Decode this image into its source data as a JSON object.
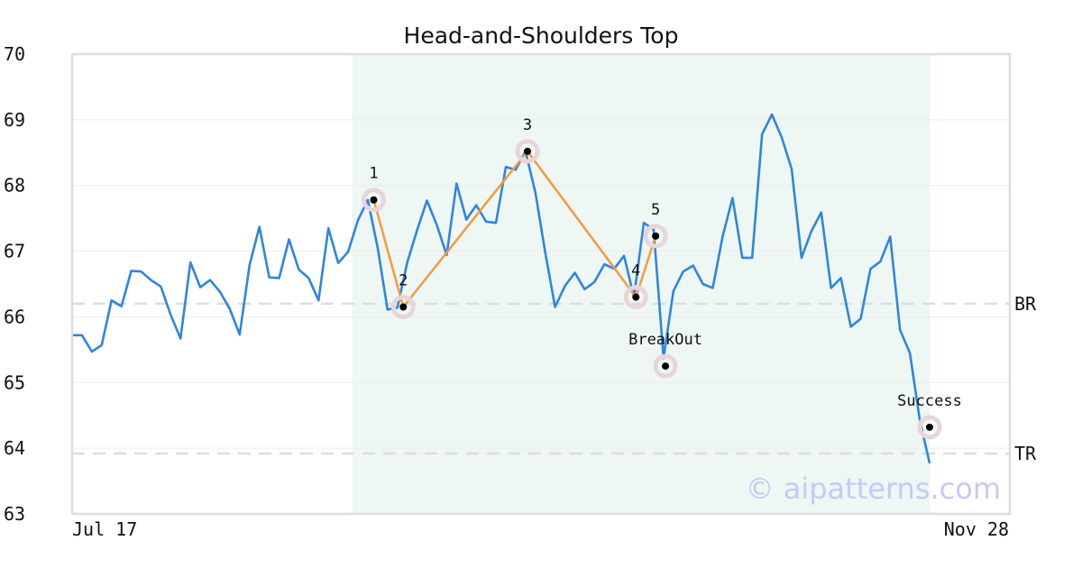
{
  "chart_data": {
    "type": "line",
    "title": "Head-and-Shoulders Top",
    "xlabel": "",
    "ylabel": "",
    "ylim": [
      63,
      70
    ],
    "yticks": [
      "63",
      "64",
      "65",
      "66",
      "67",
      "68",
      "69",
      "70"
    ],
    "x_range_labels": [
      "Jul 17",
      "Nov 28"
    ],
    "grid": "horizontal",
    "colors": {
      "price_line": "#2e86de",
      "pattern_line": "#f39c45",
      "pattern_band": "#eef7f3",
      "level_line": "#dddddd",
      "marker_halo": "#e8d5dc",
      "marker_dot": "#000000",
      "frame": "#dddddd",
      "grid": "#ebebeb"
    },
    "series": [
      {
        "values": [
          65.72,
          65.72,
          65.47,
          65.57,
          66.25,
          66.16,
          66.7,
          66.69,
          66.56,
          66.46,
          66.03,
          65.67,
          66.83,
          66.45,
          66.56,
          66.38,
          66.12,
          65.73,
          66.79,
          67.37,
          66.6,
          66.59,
          67.18,
          66.72,
          66.59,
          66.25,
          67.35,
          66.82,
          66.99,
          67.47,
          67.78,
          67.05,
          66.11,
          66.14,
          66.83,
          67.32,
          67.77,
          67.4,
          66.94,
          68.03,
          67.48,
          67.7,
          67.45,
          67.43,
          68.28,
          68.24,
          68.52,
          67.89,
          66.98,
          66.15,
          66.47,
          66.67,
          66.42,
          66.53,
          66.8,
          66.73,
          66.93,
          66.3,
          67.43,
          67.33,
          65.37,
          66.39,
          66.69,
          66.78,
          66.5,
          66.44,
          67.22,
          67.81,
          66.9,
          66.9,
          68.78,
          69.08,
          68.73,
          68.25,
          66.9,
          67.3,
          67.59,
          66.44,
          66.59,
          65.85,
          65.97,
          66.73,
          66.84,
          67.22,
          65.8,
          65.45,
          64.43,
          63.77
        ]
      }
    ],
    "pattern": {
      "window": {
        "start_index": 28.4,
        "end_index": 87
      },
      "points": [
        {
          "label": "1",
          "index": 30.6,
          "value": 67.78
        },
        {
          "label": "2",
          "index": 33.6,
          "value": 66.15
        },
        {
          "label": "3",
          "index": 46.2,
          "value": 68.52
        },
        {
          "label": "4",
          "index": 57.2,
          "value": 66.3
        },
        {
          "label": "5",
          "index": 59.2,
          "value": 67.23
        },
        {
          "label": "BreakOut",
          "index": 60.2,
          "value": 65.25
        },
        {
          "label": "Success",
          "index": 87.0,
          "value": 64.32
        }
      ],
      "outline_points": [
        "1",
        "2",
        "3",
        "4",
        "5"
      ]
    },
    "levels": [
      {
        "label": "BR",
        "value": 66.2
      },
      {
        "label": "TR",
        "value": 63.92
      }
    ],
    "watermark": "© aipatterns.com"
  }
}
